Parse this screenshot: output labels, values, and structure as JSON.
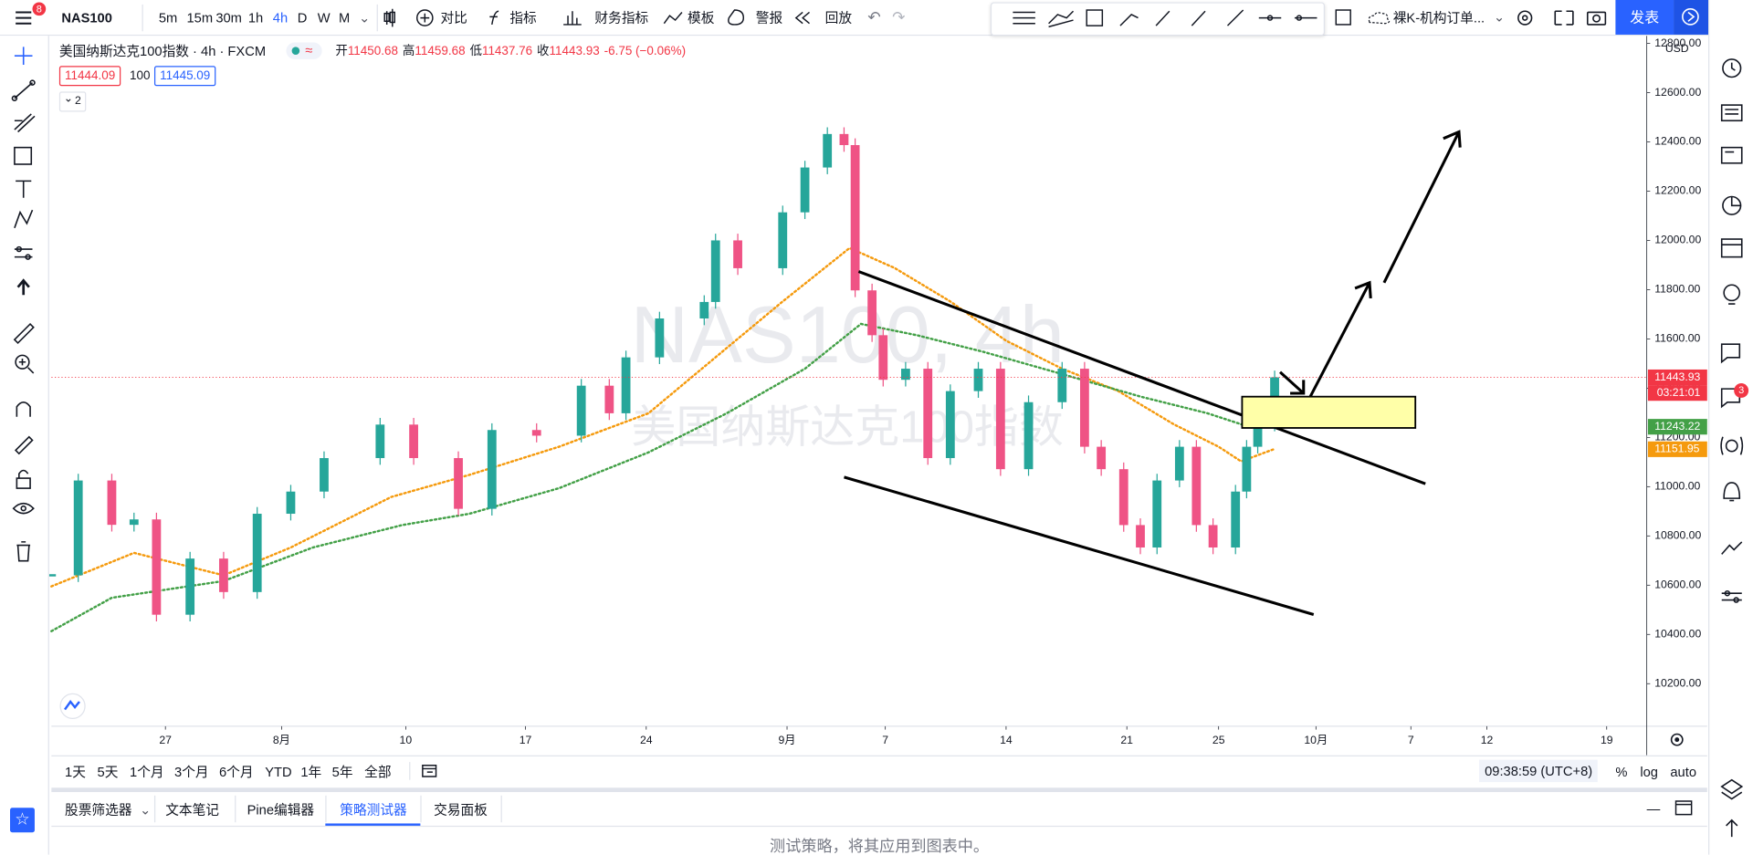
{
  "top_toolbar": {
    "menu_badge": "8",
    "symbol": "NAS100",
    "intervals": [
      "5m",
      "15m",
      "30m",
      "1h",
      "4h",
      "D",
      "W",
      "M"
    ],
    "items": [
      "对比",
      "指标",
      "财务指标",
      "模板",
      "警报",
      "回放"
    ],
    "layout_name": "裸K-机构订单...",
    "publish": "发表"
  },
  "legend": {
    "name": "美国纳斯达克100指数 · 4h · FXCM",
    "ohlc": [
      {
        "label": "开",
        "value": "11450.68"
      },
      {
        "label": "高",
        "value": "11459.68"
      },
      {
        "label": "低",
        "value": "11437.76"
      },
      {
        "label": "收",
        "value": "11443.93"
      }
    ],
    "change": "-6.75 (−0.06%)",
    "bid": "11444.09",
    "spread": "100",
    "ask": "11445.09",
    "collapsed": "2"
  },
  "watermark": {
    "line1": "NAS100, 4h",
    "line2": "美国纳斯达克100指数"
  },
  "chart_data": {
    "type": "candlestick",
    "currency": "USD",
    "up_color": "#26a69a",
    "down_color": "#ef5385",
    "grid": false,
    "x": [
      -4.72,
      -3.61,
      -2.22,
      -1.3,
      -0.37,
      1.02,
      2.41,
      3.8,
      5.19,
      6.57,
      8.89,
      10.28,
      12.13,
      13.52,
      15.37,
      17.22,
      18.38,
      19.07,
      20.46,
      22.31,
      22.78,
      23.7,
      25.56,
      26.48,
      27.41,
      28.1,
      28.56,
      29.26,
      29.72,
      30.65,
      31.57,
      32.5,
      33.66,
      34.58,
      35.74,
      37.13,
      38.06,
      38.75,
      39.68,
      40.37,
      41.06,
      41.99,
      42.69,
      43.38,
      44.31,
      44.77,
      45.23,
      45.93
    ],
    "close": [
      10640,
      11025,
      10845,
      10867,
      10480,
      10708,
      10572,
      10890,
      10980,
      11116,
      11252,
      11116,
      10910,
      11230,
      11207,
      11410,
      11298,
      11525,
      11683,
      11750,
      12000,
      11887,
      12114,
      12296,
      12432,
      12387,
      11797,
      11615,
      11434,
      11479,
      11116,
      11388,
      11479,
      11071,
      11343,
      11479,
      11162,
      11071,
      10844,
      10753,
      11025,
      11162,
      10844,
      10753,
      10980,
      11162,
      11252,
      11443.93
    ],
    "moving_averages": [
      {
        "color": "#f59a0d",
        "x": [
          -4.72,
          -1.3,
          2.41,
          5.19,
          9.35,
          12.59,
          16.3,
          20,
          22.78,
          25.56,
          28.33,
          30.19,
          32.5,
          34.81,
          37.13,
          39.44,
          41.76,
          43.61,
          44.54,
          45.93
        ],
        "values": [
          10595,
          10731,
          10640,
          10753,
          10958,
          11048,
          11162,
          11298,
          11525,
          11752,
          11969,
          11888,
          11752,
          11593,
          11479,
          11389,
          11253,
          11162,
          11103,
          11153
        ]
      },
      {
        "color": "#43a047",
        "x": [
          -4.72,
          -2.22,
          2.41,
          6.11,
          9.81,
          12.59,
          16.3,
          20,
          23.24,
          26.48,
          28.8,
          31.11,
          33.89,
          37.13,
          40.37,
          43.15,
          45
        ],
        "values": [
          10413,
          10549,
          10617,
          10753,
          10844,
          10890,
          10994,
          11139,
          11298,
          11479,
          11661,
          11615,
          11547,
          11457,
          11366,
          11298,
          11239
        ]
      }
    ],
    "price_labels": [
      {
        "value": 11443.93,
        "color": "#f23645"
      },
      {
        "value": 11243.22,
        "color": "#43a047"
      },
      {
        "value": 11151.95,
        "color": "#f59a0d"
      }
    ],
    "countdown": "03:21:01",
    "xlim": [
      -4.72,
      61.34
    ],
    "xticks": [
      {
        "value": 0,
        "label": "27"
      },
      {
        "value": 4.81,
        "label": "8月"
      },
      {
        "value": 9.95,
        "label": "10"
      },
      {
        "value": 14.91,
        "label": "17"
      },
      {
        "value": 19.91,
        "label": "24"
      },
      {
        "value": 25.74,
        "label": "9月"
      },
      {
        "value": 29.81,
        "label": "7"
      },
      {
        "value": 34.81,
        "label": "14"
      },
      {
        "value": 39.81,
        "label": "21"
      },
      {
        "value": 43.61,
        "label": "25"
      },
      {
        "value": 47.64,
        "label": "10月"
      },
      {
        "value": 51.57,
        "label": "7"
      },
      {
        "value": 54.72,
        "label": "12"
      },
      {
        "value": 59.68,
        "label": "19"
      }
    ],
    "ylim": [
      10027,
      12831
    ],
    "yticks": [
      {
        "value": 10200,
        "label": "10200.00"
      },
      {
        "value": 10400,
        "label": "10400.00"
      },
      {
        "value": 10600,
        "label": "10600.00"
      },
      {
        "value": 10800,
        "label": "10800.00"
      },
      {
        "value": 11000,
        "label": "11000.00"
      },
      {
        "value": 11200,
        "label": "11200.00"
      },
      {
        "value": 11400,
        "label": "11400.00"
      },
      {
        "value": 11600,
        "label": "11600.00"
      },
      {
        "value": 11800,
        "label": "11800.00"
      },
      {
        "value": 12000,
        "label": "12000.00"
      },
      {
        "value": 12200,
        "label": "12200.00"
      },
      {
        "value": 12400,
        "label": "12400.00"
      },
      {
        "value": 12600,
        "label": "12600.00"
      },
      {
        "value": 12800,
        "label": "12800.00"
      }
    ]
  },
  "bottom_bar": {
    "ranges": [
      "1天",
      "5天",
      "1个月",
      "3个月",
      "6个月",
      "YTD",
      "1年",
      "5年",
      "全部"
    ],
    "time": "09:38:59 (UTC+8)",
    "scale_options": [
      "%",
      "log",
      "auto"
    ]
  },
  "panel": {
    "tabs": [
      "股票筛选器",
      "文本笔记",
      "Pine编辑器",
      "策略测试器",
      "交易面板"
    ],
    "message": "测试策略，将其应用到图表中。"
  },
  "sidebar": {
    "alert_badge": "3"
  }
}
